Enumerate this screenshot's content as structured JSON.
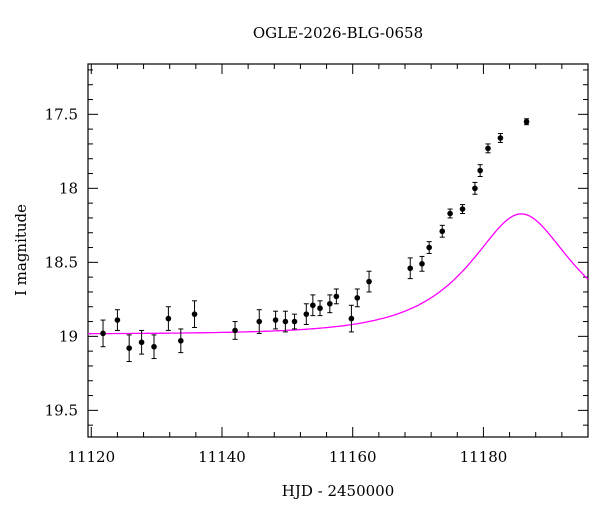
{
  "chart_data": {
    "type": "scatter",
    "title": "OGLE-2026-BLG-0658",
    "xlabel": "HJD - 2450000",
    "ylabel": "I magnitude",
    "xlim": [
      11119.5,
      11196
    ],
    "ylim": [
      19.68,
      17.16
    ],
    "y_inverted": true,
    "grid": false,
    "xticks": [
      11120,
      11140,
      11160,
      11180
    ],
    "xtick_labels": [
      "11120",
      "11140",
      "11160",
      "11180"
    ],
    "yticks": [
      17.5,
      18,
      18.5,
      19,
      19.5
    ],
    "ytick_labels": [
      "17.5",
      "18",
      "18.5",
      "19",
      "19.5"
    ],
    "colors": {
      "points": "#000000",
      "model": "#ff00ff",
      "frame": "#000000"
    },
    "series": [
      {
        "kind": "points",
        "x": [
          11121.8,
          11124.0,
          11125.8,
          11127.7,
          11129.6,
          11131.8,
          11133.7,
          11135.8,
          11142.0,
          11145.7,
          11148.2,
          11149.7,
          11151.1,
          11152.9,
          11153.9,
          11155.0,
          11156.5,
          11157.5,
          11159.8,
          11160.7,
          11162.5,
          11168.8,
          11170.6,
          11171.7,
          11173.7,
          11174.9,
          11176.8,
          11178.7,
          11179.5,
          11180.7,
          11182.6,
          11186.6
        ],
        "y": [
          18.98,
          18.89,
          19.08,
          19.04,
          19.07,
          18.88,
          19.03,
          18.85,
          18.96,
          18.9,
          18.89,
          18.9,
          18.9,
          18.85,
          18.79,
          18.81,
          18.78,
          18.73,
          18.88,
          18.74,
          18.63,
          18.54,
          18.51,
          18.4,
          18.29,
          18.17,
          18.14,
          18.0,
          17.88,
          17.73,
          17.66,
          17.55
        ],
        "yerr": [
          0.09,
          0.07,
          0.09,
          0.08,
          0.08,
          0.08,
          0.08,
          0.09,
          0.06,
          0.08,
          0.06,
          0.07,
          0.05,
          0.07,
          0.07,
          0.05,
          0.06,
          0.05,
          0.09,
          0.06,
          0.07,
          0.07,
          0.05,
          0.04,
          0.04,
          0.03,
          0.03,
          0.04,
          0.04,
          0.03,
          0.03,
          0.02
        ]
      },
      {
        "kind": "model",
        "t0": 11185.8,
        "u0": 0.52,
        "tE": 13.5,
        "base": 18.985
      }
    ]
  }
}
